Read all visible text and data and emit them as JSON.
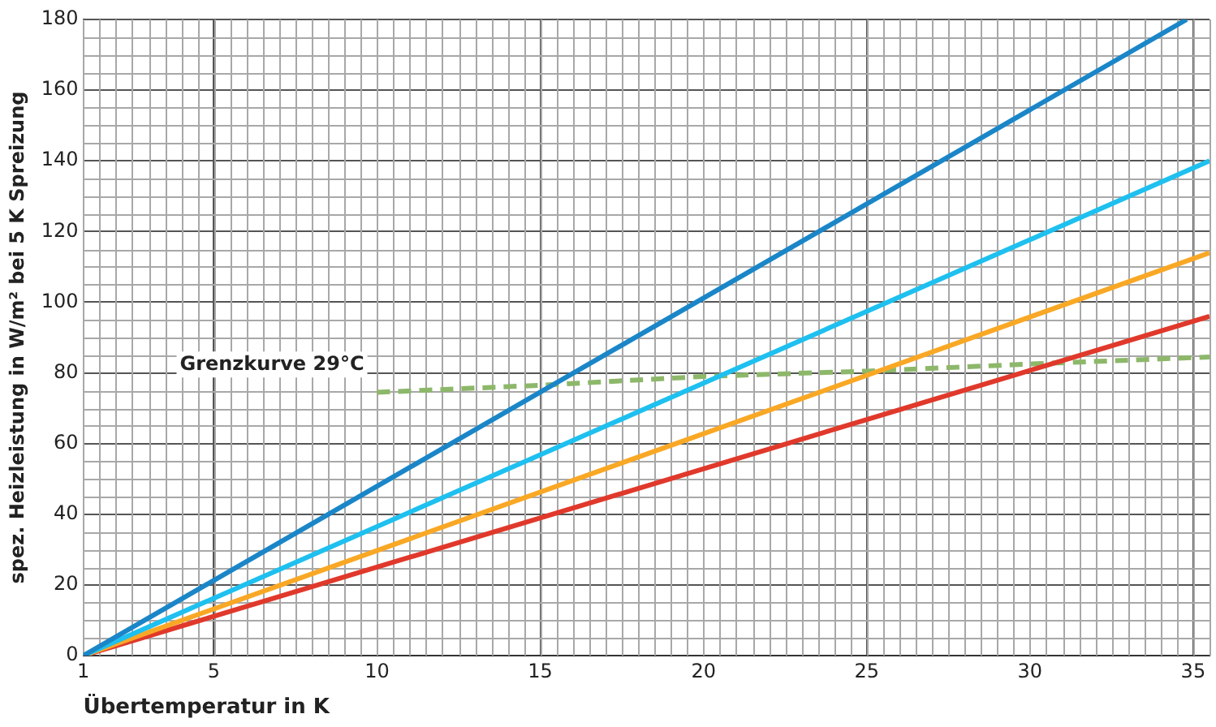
{
  "chart_data": {
    "type": "line",
    "xlabel": "Übertemperatur in K",
    "ylabel": "spez. Heizleistung in W/m² bei 5 K Spreizung",
    "xlim": [
      1,
      35.5
    ],
    "xticks": [
      1,
      5,
      10,
      15,
      20,
      25,
      30,
      35
    ],
    "ylim": [
      0,
      180
    ],
    "yticks": [
      0,
      20,
      40,
      60,
      80,
      100,
      120,
      140,
      160,
      180
    ],
    "grid": true,
    "legend": false,
    "marker": "none",
    "series": [
      {
        "color": "#1a86c8",
        "x": [
          1,
          34.8
        ],
        "values": [
          0,
          180
        ]
      },
      {
        "color": "#1ec0ef",
        "x": [
          1,
          35.5
        ],
        "values": [
          0,
          140
        ]
      },
      {
        "color": "#f9a825",
        "x": [
          1,
          35.5
        ],
        "values": [
          0,
          114
        ]
      },
      {
        "color": "#e0392b",
        "x": [
          1,
          35.5
        ],
        "values": [
          0,
          96
        ]
      },
      {
        "color": "#8db86a",
        "line_style": "dashed",
        "x": [
          10,
          15,
          20,
          25,
          30,
          35.5
        ],
        "values": [
          74.5,
          76.5,
          79,
          80.5,
          82.5,
          84.5
        ]
      }
    ],
    "annotations": [
      {
        "text": "Grenzkurve 29°C",
        "x": 10,
        "y": 75
      }
    ]
  }
}
